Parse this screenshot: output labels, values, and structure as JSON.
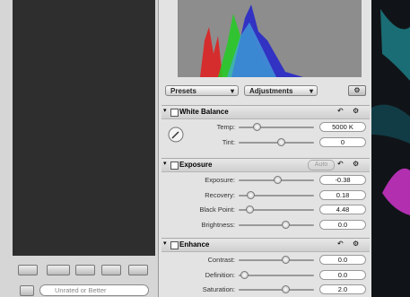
{
  "toolbar": {
    "presets": "Presets",
    "adjustments": "Adjustments"
  },
  "sections": [
    {
      "title": "White Balance",
      "rows": [
        {
          "label": "Temp:",
          "value": "5000 K"
        },
        {
          "label": "Tint:",
          "value": "0"
        }
      ]
    },
    {
      "title": "Exposure",
      "button": "Auto",
      "rows": [
        {
          "label": "Exposure:",
          "value": "-0.38"
        },
        {
          "label": "Recovery:",
          "value": "0.18"
        },
        {
          "label": "Black Point:",
          "value": "4.48"
        },
        {
          "label": "Brightness:",
          "value": "0.0"
        }
      ]
    },
    {
      "title": "Enhance",
      "rows": [
        {
          "label": "Contrast:",
          "value": "0.0"
        },
        {
          "label": "Definition:",
          "value": "0.0"
        },
        {
          "label": "Saturation:",
          "value": "2.0"
        }
      ]
    }
  ],
  "search": {
    "placeholder": "Unrated or Better"
  }
}
